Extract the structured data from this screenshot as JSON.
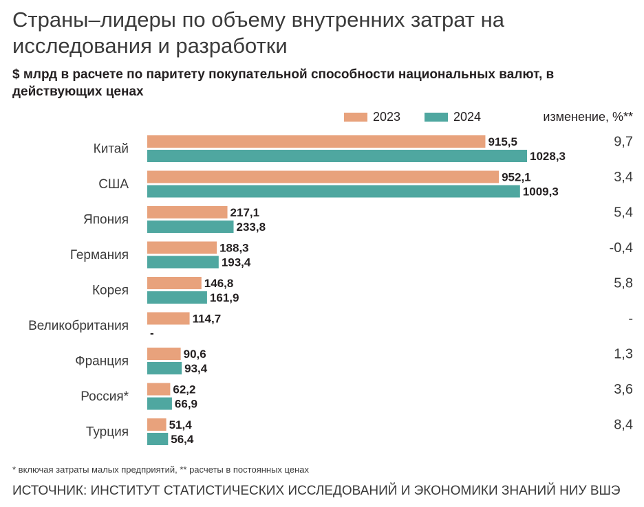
{
  "header": {
    "title": "Страны–лидеры по объему внутренних затрат на исследования и разработки",
    "subtitle": "$ млрд в расчете по паритету покупательной способности национальных валют, в действующих ценах"
  },
  "legend": {
    "series_2023": "2023",
    "series_2024": "2024",
    "change_header": "изменение, %**"
  },
  "colors": {
    "series_2023": "#e8a27c",
    "series_2024": "#4fa7a0"
  },
  "chart_data": {
    "type": "bar",
    "orientation": "horizontal",
    "title": "Страны–лидеры по объему внутренних затрат на исследования и разработки",
    "subtitle": "$ млрд в расчете по паритету покупательной способности национальных валют, в действующих ценах",
    "categories": [
      "Китай",
      "США",
      "Япония",
      "Германия",
      "Корея",
      "Великобритания",
      "Франция",
      "Россия*",
      "Турция"
    ],
    "series": [
      {
        "name": "2023",
        "values": [
          915.5,
          952.1,
          217.1,
          188.3,
          146.8,
          114.7,
          90.6,
          62.2,
          51.4
        ],
        "labels": [
          "915,5",
          "952,1",
          "217,1",
          "188,3",
          "146,8",
          "114,7",
          "90,6",
          "62,2",
          "51,4"
        ]
      },
      {
        "name": "2024",
        "values": [
          1028.3,
          1009.3,
          233.8,
          193.4,
          161.9,
          null,
          93.4,
          66.9,
          56.4
        ],
        "labels": [
          "1028,3",
          "1009,3",
          "233,8",
          "193,4",
          "161,9",
          "-",
          "93,4",
          "66,9",
          "56,4"
        ]
      }
    ],
    "change_pct": [
      "9,7",
      "3,4",
      "5,4",
      "-0,4",
      "5,8",
      "-",
      "1,3",
      "3,6",
      "8,4"
    ],
    "xlim": [
      0,
      1028.3
    ],
    "grid": false,
    "legend_position": "top-right"
  },
  "notes": {
    "footnote": "* включая затраты малых предприятий, ** расчеты в постоянных ценах",
    "source": "ИСТОЧНИК: ИНСТИТУТ СТАТИСТИЧЕСКИХ ИССЛЕДОВАНИЙ И ЭКОНОМИКИ ЗНАНИЙ НИУ ВШЭ"
  }
}
